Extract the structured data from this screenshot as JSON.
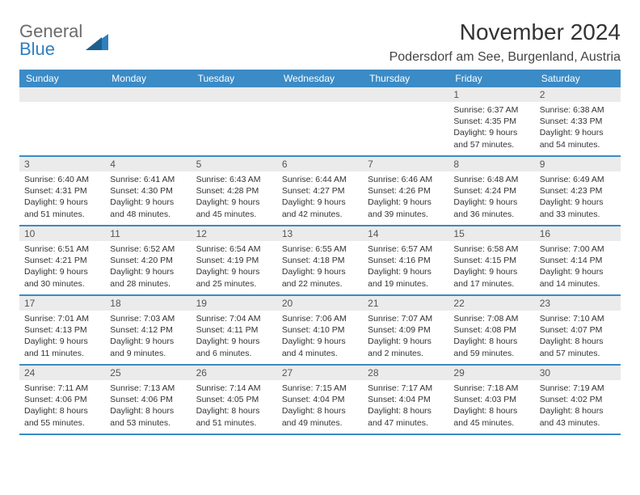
{
  "logo": {
    "line1": "General",
    "line2": "Blue"
  },
  "title": "November 2024",
  "subtitle": "Podersdorf am See, Burgenland, Austria",
  "colors": {
    "header_bar": "#3b8bc6",
    "week_divider": "#3b8bc6",
    "daynum_bg": "#ebebeb",
    "text": "#333333",
    "logo_gray": "#6b6b6b",
    "logo_blue": "#2f7fbf",
    "background": "#ffffff"
  },
  "weekdays": [
    "Sunday",
    "Monday",
    "Tuesday",
    "Wednesday",
    "Thursday",
    "Friday",
    "Saturday"
  ],
  "weeks": [
    [
      null,
      null,
      null,
      null,
      null,
      {
        "n": "1",
        "sunrise": "Sunrise: 6:37 AM",
        "sunset": "Sunset: 4:35 PM",
        "day1": "Daylight: 9 hours",
        "day2": "and 57 minutes."
      },
      {
        "n": "2",
        "sunrise": "Sunrise: 6:38 AM",
        "sunset": "Sunset: 4:33 PM",
        "day1": "Daylight: 9 hours",
        "day2": "and 54 minutes."
      }
    ],
    [
      {
        "n": "3",
        "sunrise": "Sunrise: 6:40 AM",
        "sunset": "Sunset: 4:31 PM",
        "day1": "Daylight: 9 hours",
        "day2": "and 51 minutes."
      },
      {
        "n": "4",
        "sunrise": "Sunrise: 6:41 AM",
        "sunset": "Sunset: 4:30 PM",
        "day1": "Daylight: 9 hours",
        "day2": "and 48 minutes."
      },
      {
        "n": "5",
        "sunrise": "Sunrise: 6:43 AM",
        "sunset": "Sunset: 4:28 PM",
        "day1": "Daylight: 9 hours",
        "day2": "and 45 minutes."
      },
      {
        "n": "6",
        "sunrise": "Sunrise: 6:44 AM",
        "sunset": "Sunset: 4:27 PM",
        "day1": "Daylight: 9 hours",
        "day2": "and 42 minutes."
      },
      {
        "n": "7",
        "sunrise": "Sunrise: 6:46 AM",
        "sunset": "Sunset: 4:26 PM",
        "day1": "Daylight: 9 hours",
        "day2": "and 39 minutes."
      },
      {
        "n": "8",
        "sunrise": "Sunrise: 6:48 AM",
        "sunset": "Sunset: 4:24 PM",
        "day1": "Daylight: 9 hours",
        "day2": "and 36 minutes."
      },
      {
        "n": "9",
        "sunrise": "Sunrise: 6:49 AM",
        "sunset": "Sunset: 4:23 PM",
        "day1": "Daylight: 9 hours",
        "day2": "and 33 minutes."
      }
    ],
    [
      {
        "n": "10",
        "sunrise": "Sunrise: 6:51 AM",
        "sunset": "Sunset: 4:21 PM",
        "day1": "Daylight: 9 hours",
        "day2": "and 30 minutes."
      },
      {
        "n": "11",
        "sunrise": "Sunrise: 6:52 AM",
        "sunset": "Sunset: 4:20 PM",
        "day1": "Daylight: 9 hours",
        "day2": "and 28 minutes."
      },
      {
        "n": "12",
        "sunrise": "Sunrise: 6:54 AM",
        "sunset": "Sunset: 4:19 PM",
        "day1": "Daylight: 9 hours",
        "day2": "and 25 minutes."
      },
      {
        "n": "13",
        "sunrise": "Sunrise: 6:55 AM",
        "sunset": "Sunset: 4:18 PM",
        "day1": "Daylight: 9 hours",
        "day2": "and 22 minutes."
      },
      {
        "n": "14",
        "sunrise": "Sunrise: 6:57 AM",
        "sunset": "Sunset: 4:16 PM",
        "day1": "Daylight: 9 hours",
        "day2": "and 19 minutes."
      },
      {
        "n": "15",
        "sunrise": "Sunrise: 6:58 AM",
        "sunset": "Sunset: 4:15 PM",
        "day1": "Daylight: 9 hours",
        "day2": "and 17 minutes."
      },
      {
        "n": "16",
        "sunrise": "Sunrise: 7:00 AM",
        "sunset": "Sunset: 4:14 PM",
        "day1": "Daylight: 9 hours",
        "day2": "and 14 minutes."
      }
    ],
    [
      {
        "n": "17",
        "sunrise": "Sunrise: 7:01 AM",
        "sunset": "Sunset: 4:13 PM",
        "day1": "Daylight: 9 hours",
        "day2": "and 11 minutes."
      },
      {
        "n": "18",
        "sunrise": "Sunrise: 7:03 AM",
        "sunset": "Sunset: 4:12 PM",
        "day1": "Daylight: 9 hours",
        "day2": "and 9 minutes."
      },
      {
        "n": "19",
        "sunrise": "Sunrise: 7:04 AM",
        "sunset": "Sunset: 4:11 PM",
        "day1": "Daylight: 9 hours",
        "day2": "and 6 minutes."
      },
      {
        "n": "20",
        "sunrise": "Sunrise: 7:06 AM",
        "sunset": "Sunset: 4:10 PM",
        "day1": "Daylight: 9 hours",
        "day2": "and 4 minutes."
      },
      {
        "n": "21",
        "sunrise": "Sunrise: 7:07 AM",
        "sunset": "Sunset: 4:09 PM",
        "day1": "Daylight: 9 hours",
        "day2": "and 2 minutes."
      },
      {
        "n": "22",
        "sunrise": "Sunrise: 7:08 AM",
        "sunset": "Sunset: 4:08 PM",
        "day1": "Daylight: 8 hours",
        "day2": "and 59 minutes."
      },
      {
        "n": "23",
        "sunrise": "Sunrise: 7:10 AM",
        "sunset": "Sunset: 4:07 PM",
        "day1": "Daylight: 8 hours",
        "day2": "and 57 minutes."
      }
    ],
    [
      {
        "n": "24",
        "sunrise": "Sunrise: 7:11 AM",
        "sunset": "Sunset: 4:06 PM",
        "day1": "Daylight: 8 hours",
        "day2": "and 55 minutes."
      },
      {
        "n": "25",
        "sunrise": "Sunrise: 7:13 AM",
        "sunset": "Sunset: 4:06 PM",
        "day1": "Daylight: 8 hours",
        "day2": "and 53 minutes."
      },
      {
        "n": "26",
        "sunrise": "Sunrise: 7:14 AM",
        "sunset": "Sunset: 4:05 PM",
        "day1": "Daylight: 8 hours",
        "day2": "and 51 minutes."
      },
      {
        "n": "27",
        "sunrise": "Sunrise: 7:15 AM",
        "sunset": "Sunset: 4:04 PM",
        "day1": "Daylight: 8 hours",
        "day2": "and 49 minutes."
      },
      {
        "n": "28",
        "sunrise": "Sunrise: 7:17 AM",
        "sunset": "Sunset: 4:04 PM",
        "day1": "Daylight: 8 hours",
        "day2": "and 47 minutes."
      },
      {
        "n": "29",
        "sunrise": "Sunrise: 7:18 AM",
        "sunset": "Sunset: 4:03 PM",
        "day1": "Daylight: 8 hours",
        "day2": "and 45 minutes."
      },
      {
        "n": "30",
        "sunrise": "Sunrise: 7:19 AM",
        "sunset": "Sunset: 4:02 PM",
        "day1": "Daylight: 8 hours",
        "day2": "and 43 minutes."
      }
    ]
  ]
}
